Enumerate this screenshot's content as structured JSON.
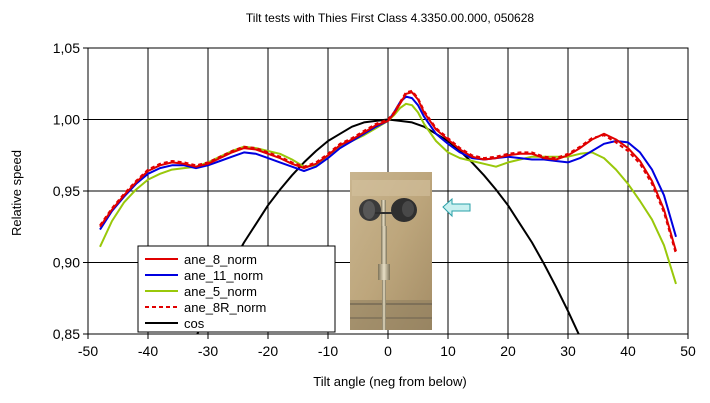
{
  "chart_data": {
    "type": "line",
    "title": "Tilt tests with Thies First Class 4.3350.00.000, 050628",
    "xlabel": "Tilt angle (neg from below)",
    "ylabel": "Relative speed",
    "xlim": [
      -50,
      50
    ],
    "ylim": [
      0.85,
      1.05
    ],
    "xticks": [
      -50,
      -40,
      -30,
      -20,
      -10,
      0,
      10,
      20,
      30,
      40,
      50
    ],
    "yticks": [
      0.85,
      0.9,
      0.95,
      1.0,
      1.05
    ],
    "xtick_labels": [
      "-50",
      "-40",
      "-30",
      "-20",
      "-10",
      "0",
      "10",
      "20",
      "30",
      "40",
      "50"
    ],
    "ytick_labels": [
      "0,85",
      "0,90",
      "0,95",
      "1,00",
      "1,05"
    ],
    "grid": true,
    "legend_position": "lower-left",
    "series": [
      {
        "name": "ane_8_norm",
        "color": "#e00000",
        "dash": "solid",
        "x": [
          -48,
          -46,
          -44,
          -42,
          -40,
          -38,
          -36,
          -34,
          -32,
          -30,
          -28,
          -26,
          -24,
          -22,
          -20,
          -18,
          -16,
          -14,
          -12,
          -10,
          -8,
          -6,
          -4,
          -2,
          0,
          1,
          2,
          3,
          4,
          5,
          6,
          8,
          10,
          12,
          14,
          16,
          18,
          20,
          22,
          24,
          26,
          28,
          30,
          32,
          34,
          36,
          38,
          40,
          42,
          44,
          46,
          48
        ],
        "y": [
          0.925,
          0.937,
          0.947,
          0.956,
          0.964,
          0.968,
          0.97,
          0.969,
          0.967,
          0.969,
          0.973,
          0.977,
          0.98,
          0.979,
          0.976,
          0.973,
          0.969,
          0.966,
          0.969,
          0.975,
          0.982,
          0.986,
          0.991,
          0.996,
          0.999,
          1.004,
          1.011,
          1.018,
          1.019,
          1.014,
          1.005,
          0.993,
          0.986,
          0.979,
          0.974,
          0.972,
          0.973,
          0.975,
          0.976,
          0.976,
          0.973,
          0.972,
          0.975,
          0.98,
          0.986,
          0.99,
          0.986,
          0.98,
          0.971,
          0.957,
          0.937,
          0.908
        ]
      },
      {
        "name": "ane_11_norm",
        "color": "#0000e0",
        "dash": "solid",
        "x": [
          -48,
          -46,
          -44,
          -42,
          -40,
          -38,
          -36,
          -34,
          -32,
          -30,
          -28,
          -26,
          -24,
          -22,
          -20,
          -18,
          -16,
          -14,
          -12,
          -10,
          -8,
          -6,
          -4,
          -2,
          0,
          1,
          2,
          3,
          4,
          5,
          6,
          8,
          10,
          12,
          14,
          16,
          18,
          20,
          22,
          24,
          26,
          28,
          30,
          32,
          34,
          36,
          38,
          40,
          42,
          44,
          46,
          48
        ],
        "y": [
          0.923,
          0.936,
          0.946,
          0.955,
          0.962,
          0.966,
          0.968,
          0.968,
          0.966,
          0.968,
          0.971,
          0.974,
          0.977,
          0.976,
          0.973,
          0.97,
          0.967,
          0.964,
          0.967,
          0.973,
          0.98,
          0.985,
          0.99,
          0.995,
          0.999,
          1.005,
          1.012,
          1.016,
          1.015,
          1.01,
          1.002,
          0.99,
          0.983,
          0.977,
          0.973,
          0.972,
          0.973,
          0.974,
          0.973,
          0.972,
          0.972,
          0.971,
          0.97,
          0.973,
          0.978,
          0.983,
          0.985,
          0.984,
          0.977,
          0.965,
          0.947,
          0.918
        ]
      },
      {
        "name": "ane_5_norm",
        "color": "#99c80a",
        "dash": "solid",
        "x": [
          -48,
          -46,
          -44,
          -42,
          -40,
          -38,
          -36,
          -34,
          -32,
          -30,
          -28,
          -26,
          -24,
          -22,
          -20,
          -18,
          -16,
          -14,
          -12,
          -10,
          -8,
          -6,
          -4,
          -2,
          0,
          1,
          2,
          3,
          4,
          5,
          6,
          8,
          10,
          12,
          14,
          16,
          18,
          20,
          22,
          24,
          26,
          28,
          30,
          32,
          34,
          36,
          38,
          40,
          42,
          44,
          46,
          48
        ],
        "y": [
          0.911,
          0.929,
          0.942,
          0.951,
          0.958,
          0.962,
          0.965,
          0.966,
          0.967,
          0.97,
          0.974,
          0.978,
          0.981,
          0.98,
          0.978,
          0.976,
          0.972,
          0.967,
          0.968,
          0.975,
          0.981,
          0.985,
          0.989,
          0.994,
          0.999,
          1.003,
          1.008,
          1.011,
          1.01,
          1.005,
          0.997,
          0.985,
          0.977,
          0.973,
          0.971,
          0.969,
          0.967,
          0.97,
          0.972,
          0.974,
          0.974,
          0.974,
          0.974,
          0.976,
          0.977,
          0.973,
          0.965,
          0.955,
          0.943,
          0.93,
          0.912,
          0.885
        ]
      },
      {
        "name": "ane_8R_norm",
        "color": "#e00000",
        "dash": "dashed",
        "x": [
          -48,
          -46,
          -44,
          -42,
          -40,
          -38,
          -36,
          -34,
          -32,
          -30,
          -28,
          -26,
          -24,
          -22,
          -20,
          -18,
          -16,
          -14,
          -12,
          -10,
          -8,
          -6,
          -4,
          -2,
          0,
          1,
          2,
          3,
          4,
          5,
          6,
          8,
          10,
          12,
          14,
          16,
          18,
          20,
          22,
          24,
          26,
          28,
          30,
          32,
          34,
          36,
          38,
          40,
          42,
          44,
          46,
          48
        ],
        "y": [
          0.926,
          0.938,
          0.948,
          0.957,
          0.965,
          0.969,
          0.971,
          0.97,
          0.968,
          0.97,
          0.974,
          0.978,
          0.981,
          0.98,
          0.977,
          0.974,
          0.97,
          0.967,
          0.97,
          0.976,
          0.983,
          0.987,
          0.992,
          0.997,
          1.0,
          1.005,
          1.012,
          1.019,
          1.02,
          1.015,
          1.006,
          0.994,
          0.987,
          0.98,
          0.975,
          0.973,
          0.974,
          0.976,
          0.977,
          0.977,
          0.974,
          0.973,
          0.976,
          0.981,
          0.987,
          0.989,
          0.984,
          0.978,
          0.969,
          0.955,
          0.935,
          0.906
        ]
      },
      {
        "name": "cos",
        "color": "#000000",
        "dash": "solid",
        "x": [
          -32,
          -30,
          -28,
          -26,
          -24,
          -22,
          -20,
          -18,
          -16,
          -14,
          -12,
          -10,
          -8,
          -6,
          -4,
          -2,
          0,
          2,
          4,
          6,
          8,
          10,
          12,
          14,
          16,
          18,
          20,
          22,
          24,
          26,
          28,
          30,
          32
        ],
        "y": [
          0.848,
          0.866,
          0.883,
          0.899,
          0.914,
          0.927,
          0.94,
          0.951,
          0.961,
          0.97,
          0.978,
          0.985,
          0.99,
          0.995,
          0.998,
          0.999,
          1.0,
          0.999,
          0.998,
          0.995,
          0.99,
          0.985,
          0.978,
          0.97,
          0.961,
          0.951,
          0.94,
          0.927,
          0.914,
          0.899,
          0.883,
          0.866,
          0.848
        ]
      }
    ],
    "inset_photo": {
      "subject": "cup anemometer photo",
      "arrow_color": "#c8f0f0"
    }
  }
}
